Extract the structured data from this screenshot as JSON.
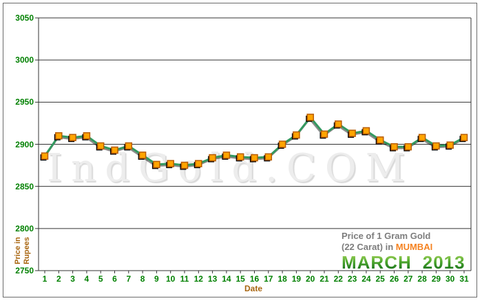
{
  "watermark": "IndGold.COM",
  "legend": {
    "line1": "Price of 1 Gram Gold",
    "line2": "(22 Carat) in",
    "city": "MUMBAI",
    "month": "MARCH",
    "year": "2013"
  },
  "axes": {
    "x_label": "Date",
    "y_label_lines": [
      "Price in",
      "Rupees"
    ]
  },
  "colors": {
    "green": "#008000",
    "brown": "#a8650f",
    "gray": "#7d7d7d",
    "orange": "#f58220",
    "march-light": "#a6d45c",
    "march-dark": "#156e1c",
    "watermark": "#ededed",
    "grid": "#333333"
  },
  "chart_data": {
    "type": "line",
    "title": "Price of 1 Gram Gold (22 Carat) in MUMBAI - MARCH 2013",
    "xlabel": "Date",
    "ylabel": "Price in Rupees",
    "x": [
      1,
      2,
      3,
      4,
      5,
      6,
      7,
      8,
      9,
      10,
      11,
      12,
      13,
      14,
      15,
      16,
      17,
      18,
      19,
      20,
      21,
      22,
      23,
      24,
      25,
      26,
      27,
      28,
      29,
      30,
      31
    ],
    "values": [
      2886,
      2910,
      2908,
      2910,
      2898,
      2893,
      2898,
      2887,
      2876,
      2877,
      2875,
      2877,
      2884,
      2887,
      2885,
      2884,
      2885,
      2900,
      2911,
      2932,
      2912,
      2924,
      2913,
      2916,
      2905,
      2897,
      2897,
      2908,
      2898,
      2899,
      2908
    ],
    "ylim": [
      2750,
      3050
    ],
    "y_ticks": [
      2750,
      2800,
      2850,
      2900,
      2950,
      3000,
      3050
    ],
    "grid": "horizontal",
    "legend_position": "bottom-right",
    "line_color": "#339960",
    "line_shadow_color": "rgba(0,0,0,0.45)",
    "marker": "square",
    "marker_fill": "#ffa500",
    "marker_border": "#b85c00",
    "marker_shadow": "#000000"
  }
}
